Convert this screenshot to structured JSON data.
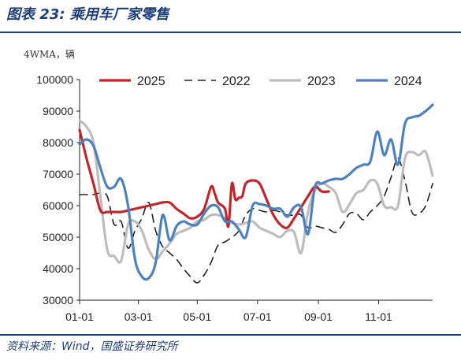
{
  "figure_title": "图表 23:  乘用车厂家零售",
  "unit_label": "4WMA，辆",
  "source_text": "资料来源：Wind，国盛证券研究所",
  "chart_data": {
    "type": "line",
    "title": "",
    "xlabel": "",
    "ylabel": "",
    "ylim": [
      30000,
      100000
    ],
    "yticks": [
      30000,
      40000,
      50000,
      60000,
      70000,
      80000,
      90000,
      100000
    ],
    "xlim": [
      1,
      52
    ],
    "xticks": [
      {
        "label": "01-01",
        "week": 1
      },
      {
        "label": "03-01",
        "week": 9.5
      },
      {
        "label": "05-01",
        "week": 18
      },
      {
        "label": "07-01",
        "week": 26.7
      },
      {
        "label": "09-01",
        "week": 35.5
      },
      {
        "label": "11-01",
        "week": 44.2
      }
    ],
    "legend_position": "top",
    "series": [
      {
        "name": "2025",
        "color": "#c0272d",
        "dash": "solid",
        "x": [
          1,
          2,
          3,
          4,
          5,
          6,
          7,
          8,
          9,
          10,
          11,
          12,
          13,
          14,
          15,
          16,
          17,
          18,
          19,
          20,
          20.5,
          21,
          22,
          22.5,
          23,
          23.5,
          24,
          24.5,
          25,
          26,
          27,
          28,
          29,
          30,
          31,
          32,
          33,
          34,
          35,
          36,
          37
        ],
        "y": [
          84000,
          75000,
          67000,
          58500,
          58000,
          58000,
          58000,
          58500,
          59000,
          59500,
          60000,
          60500,
          61000,
          61000,
          59000,
          57500,
          56000,
          56500,
          59000,
          66000,
          64000,
          61000,
          59000,
          53500,
          67000,
          62000,
          62500,
          63000,
          67000,
          68000,
          67000,
          62000,
          57000,
          54000,
          53000,
          56000,
          59500,
          63000,
          66000,
          64500,
          64500
        ]
      },
      {
        "name": "2022",
        "color": "#222222",
        "dash": "10,7",
        "x": [
          1,
          2,
          3,
          4,
          5,
          6,
          7,
          8,
          9,
          10,
          11,
          12,
          13,
          14,
          15,
          16,
          17,
          18,
          19,
          20,
          21,
          22,
          23,
          24,
          25,
          26,
          27,
          28,
          29,
          30,
          31,
          32,
          33,
          34,
          35,
          36,
          37,
          38,
          39,
          40,
          41,
          42,
          43,
          44,
          45,
          46,
          47,
          48,
          49,
          50,
          51,
          52
        ],
        "y": [
          63500,
          63500,
          63500,
          64000,
          63000,
          54000,
          55000,
          46500,
          52000,
          56000,
          61000,
          52000,
          47000,
          45000,
          43000,
          40000,
          37500,
          35500,
          38000,
          42000,
          47500,
          48500,
          50000,
          52000,
          57000,
          59000,
          58500,
          58000,
          58500,
          58000,
          57000,
          57000,
          57000,
          53000,
          53500,
          53000,
          52500,
          51500,
          54000,
          57500,
          57500,
          55500,
          58000,
          60000,
          63000,
          69000,
          75000,
          68000,
          58000,
          57500,
          60000,
          67000
        ]
      },
      {
        "name": "2023",
        "color": "#bdbdbd",
        "dash": "solid",
        "x": [
          1,
          2,
          3,
          4,
          5,
          6,
          7,
          8,
          9,
          10,
          11,
          12,
          13,
          14,
          15,
          16,
          17,
          18,
          19,
          20,
          21,
          22,
          23,
          24,
          25,
          26,
          27,
          28,
          29,
          30,
          31,
          32,
          33,
          34,
          35,
          36,
          37,
          38,
          39,
          40,
          41,
          42,
          43,
          44,
          45,
          46,
          47,
          48,
          49,
          50,
          51,
          52
        ],
        "y": [
          87000,
          85000,
          80000,
          63000,
          46000,
          44000,
          42500,
          54000,
          55000,
          52000,
          46000,
          43000,
          45500,
          48000,
          51000,
          52000,
          53000,
          55000,
          55500,
          57000,
          57000,
          56000,
          54500,
          54000,
          54500,
          55000,
          53000,
          52000,
          51000,
          50000,
          52000,
          51500,
          45000,
          58000,
          65000,
          67000,
          66000,
          64000,
          58000,
          60500,
          64000,
          65000,
          68000,
          67000,
          60000,
          59500,
          60000,
          75000,
          77000,
          76000,
          77000,
          69500
        ]
      },
      {
        "name": "2024",
        "color": "#4f81bd",
        "dash": "solid",
        "x": [
          1,
          2,
          3,
          4,
          5,
          6,
          7,
          8,
          9,
          10,
          11,
          12,
          13,
          14,
          15,
          16,
          17,
          18,
          19,
          20,
          21,
          22,
          23,
          24,
          25,
          26,
          27,
          28,
          29,
          30,
          31,
          32,
          33,
          34,
          35,
          36,
          37,
          38,
          39,
          40,
          41,
          42,
          43,
          44,
          45,
          46,
          47,
          48,
          49,
          50,
          51,
          52
        ],
        "y": [
          79500,
          81000,
          79000,
          72000,
          66000,
          66000,
          68500,
          60000,
          43000,
          37500,
          37000,
          42000,
          57000,
          49000,
          53500,
          55000,
          54000,
          54000,
          57500,
          60000,
          59500,
          55000,
          55000,
          52500,
          50000,
          60000,
          60500,
          60000,
          59000,
          59000,
          56500,
          59500,
          59500,
          51000,
          66000,
          67000,
          68000,
          68500,
          68500,
          70000,
          72000,
          73000,
          74000,
          83500,
          76000,
          81000,
          73000,
          86000,
          88000,
          88500,
          90000,
          92000
        ]
      }
    ]
  }
}
